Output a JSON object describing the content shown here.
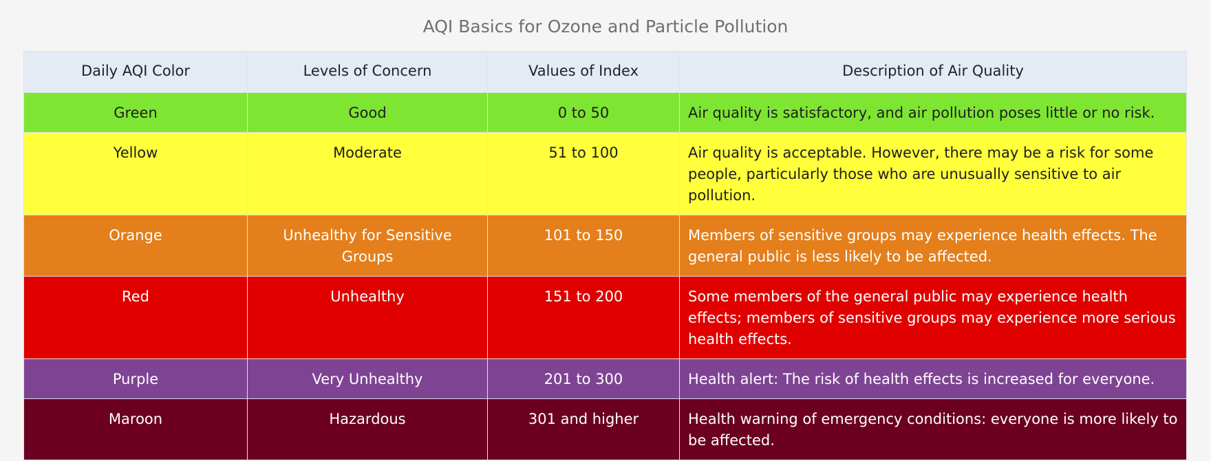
{
  "title": "AQI Basics for Ozone and Particle Pollution",
  "headers": {
    "color": "Daily AQI Color",
    "concern": "Levels of Concern",
    "values": "Values of Index",
    "description": "Description of Air Quality"
  },
  "rows": [
    {
      "color": "Green",
      "concern": "Good",
      "values": "0 to 50",
      "description": "Air quality is satisfactory, and air pollution poses little or no risk.",
      "bg": "#7ee632"
    },
    {
      "color": "Yellow",
      "concern": "Moderate",
      "values": "51 to 100",
      "description": "Air quality is acceptable. However, there may be a risk for some people, particularly those who are unusually sensitive to air pollution.",
      "bg": "#ffff3c"
    },
    {
      "color": "Orange",
      "concern": "Unhealthy for Sensitive Groups",
      "values": "101 to 150",
      "description": "Members of sensitive groups may experience health effects. The general public is less likely to be affected.",
      "bg": "#e47f1b"
    },
    {
      "color": "Red",
      "concern": "Unhealthy",
      "values": "151 to 200",
      "description": "Some members of the general public may experience health effects; members of sensitive groups may experience more serious health effects.",
      "bg": "#e00000"
    },
    {
      "color": "Purple",
      "concern": "Very Unhealthy",
      "values": "201 to 300",
      "description": "Health alert: The risk of health effects is increased for everyone.",
      "bg": "#7f4394"
    },
    {
      "color": "Maroon",
      "concern": "Hazardous",
      "values": "301 and higher",
      "description": "Health warning of emergency conditions: everyone is more likely to be affected.",
      "bg": "#6b0020"
    }
  ]
}
